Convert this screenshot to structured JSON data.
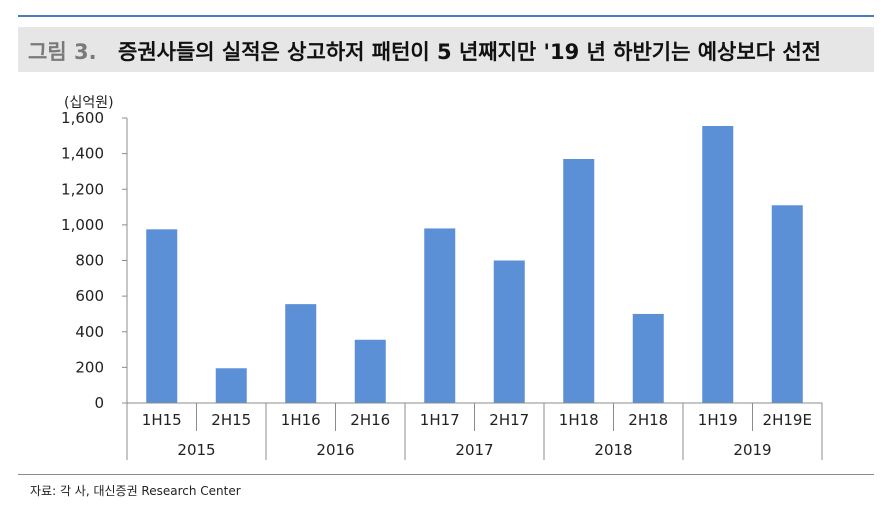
{
  "figure": {
    "number_label": "그림 3.",
    "title": "증권사들의 실적은 상고하저 패턴이 5 년째지만 '19 년 하반기는 예상보다 선전",
    "source": "자료: 각 사, 대신증권 Research Center"
  },
  "colors": {
    "bar": "#5b8fd6",
    "rule": "#4a7bbf",
    "title_bg": "#e6e6e6"
  },
  "chart_data": {
    "type": "bar",
    "title": "",
    "xlabel": "",
    "ylabel": "(십억원)",
    "ylim": [
      0,
      1600
    ],
    "y_ticks": [
      "0",
      "200",
      "400",
      "600",
      "800",
      "1,000",
      "1,200",
      "1,400",
      "1,600"
    ],
    "categories": [
      "1H15",
      "2H15",
      "1H16",
      "2H16",
      "1H17",
      "2H17",
      "1H18",
      "2H18",
      "1H19",
      "2H19E"
    ],
    "groups": [
      "2015",
      "2016",
      "2017",
      "2018",
      "2019"
    ],
    "values": [
      975,
      195,
      555,
      355,
      980,
      800,
      1370,
      500,
      1555,
      1110
    ],
    "grid": false,
    "legend": "none"
  }
}
